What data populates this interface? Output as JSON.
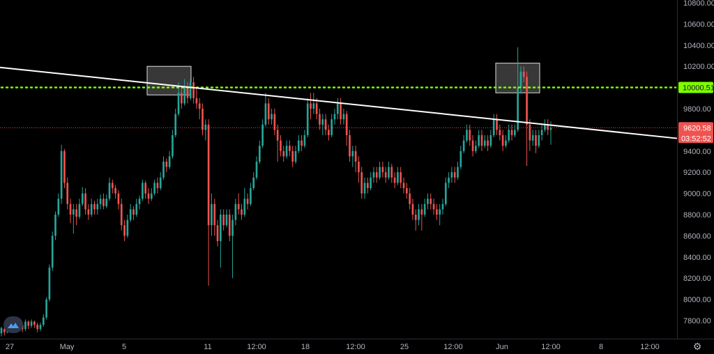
{
  "chart_data": {
    "type": "candlestick",
    "y_axis": {
      "min": 7650,
      "max": 10860,
      "ticks": [
        "10800.00",
        "10600.00",
        "10400.00",
        "10200.00",
        "10000.00",
        "9800.00",
        "9600.00",
        "9400.00",
        "9200.00",
        "9000.00",
        "8800.00",
        "8600.00",
        "8400.00",
        "8200.00",
        "8000.00",
        "7800.00"
      ]
    },
    "x_axis": {
      "ticks": [
        "27",
        "May",
        "5",
        "11",
        "12:00",
        "18",
        "12:00",
        "25",
        "12:00",
        "Jun",
        "12:00",
        "8",
        "12:00"
      ]
    },
    "price_lines": {
      "resistance": {
        "value": 10000.51,
        "label": "10000.51",
        "color": "#7fff00",
        "style": "dotted"
      },
      "last_price": {
        "value": 9620.58,
        "label": "9620.58",
        "color": "#ef5350",
        "countdown": "03:52:52"
      }
    },
    "trendline": {
      "color": "#ffffff",
      "start_value": 10190,
      "end_value": 9520
    },
    "highlight_boxes": [
      {
        "y_from": 9930,
        "y_to": 10200
      },
      {
        "y_from": 9950,
        "y_to": 10230
      }
    ],
    "colors": {
      "up": "#26a69a",
      "down": "#ef5350",
      "background": "#000000",
      "axis_text": "#b2b5be"
    },
    "candles": [
      [
        7680,
        7730,
        7650,
        7740
      ],
      [
        7720,
        7690,
        7660,
        7750
      ],
      [
        7690,
        7760,
        7680,
        7790
      ],
      [
        7760,
        7730,
        7700,
        7780
      ],
      [
        7730,
        7770,
        7710,
        7800
      ],
      [
        7770,
        7740,
        7710,
        7790
      ],
      [
        7740,
        7760,
        7700,
        7780
      ],
      [
        7760,
        7720,
        7690,
        7780
      ],
      [
        7720,
        7790,
        7700,
        7810
      ],
      [
        7790,
        7750,
        7720,
        7800
      ],
      [
        7750,
        7790,
        7730,
        7810
      ],
      [
        7790,
        7760,
        7730,
        7800
      ],
      [
        7760,
        7720,
        7690,
        7780
      ],
      [
        7720,
        7760,
        7700,
        7780
      ],
      [
        7760,
        7830,
        7740,
        7860
      ],
      [
        7830,
        8000,
        7810,
        8020
      ],
      [
        8000,
        8300,
        7980,
        8330
      ],
      [
        8300,
        8600,
        8270,
        8640
      ],
      [
        8600,
        8800,
        8560,
        8830
      ],
      [
        8800,
        8950,
        8780,
        9000
      ],
      [
        8950,
        9400,
        8900,
        9460
      ],
      [
        9400,
        9100,
        9050,
        9420
      ],
      [
        9100,
        8900,
        8850,
        9150
      ],
      [
        8900,
        8800,
        8720,
        8950
      ],
      [
        8800,
        8850,
        8620,
        8900
      ],
      [
        8850,
        8780,
        8700,
        8900
      ],
      [
        8780,
        8900,
        8760,
        8950
      ],
      [
        8900,
        9000,
        8880,
        9060
      ],
      [
        9000,
        8850,
        8800,
        9050
      ],
      [
        8850,
        8800,
        8750,
        8900
      ],
      [
        8800,
        8900,
        8780,
        8950
      ],
      [
        8900,
        8850,
        8800,
        8930
      ],
      [
        8850,
        8900,
        8800,
        8950
      ],
      [
        8900,
        8950,
        8850,
        8990
      ],
      [
        8950,
        8880,
        8850,
        9000
      ],
      [
        8880,
        8950,
        8860,
        8990
      ],
      [
        8950,
        9100,
        8930,
        9150
      ],
      [
        9100,
        9050,
        9000,
        9130
      ],
      [
        9050,
        9000,
        8950,
        9080
      ],
      [
        9000,
        8900,
        8850,
        9030
      ],
      [
        8900,
        8700,
        8650,
        8950
      ],
      [
        8700,
        8600,
        8550,
        8750
      ],
      [
        8600,
        8750,
        8580,
        8800
      ],
      [
        8750,
        8850,
        8730,
        8900
      ],
      [
        8850,
        8800,
        8750,
        8880
      ],
      [
        8800,
        8900,
        8780,
        8950
      ],
      [
        8900,
        8950,
        8850,
        8980
      ],
      [
        8950,
        9100,
        8930,
        9130
      ],
      [
        9100,
        9000,
        8950,
        9120
      ],
      [
        9000,
        8950,
        8900,
        9050
      ],
      [
        8950,
        9000,
        8930,
        9050
      ],
      [
        9000,
        9100,
        8980,
        9130
      ],
      [
        9100,
        9050,
        9000,
        9150
      ],
      [
        9050,
        9150,
        9030,
        9200
      ],
      [
        9150,
        9300,
        9130,
        9350
      ],
      [
        9300,
        9250,
        9200,
        9330
      ],
      [
        9250,
        9350,
        9230,
        9400
      ],
      [
        9350,
        9550,
        9330,
        9600
      ],
      [
        9550,
        9750,
        9530,
        9800
      ],
      [
        9750,
        9950,
        9730,
        10050
      ],
      [
        9950,
        9850,
        9800,
        10000
      ],
      [
        9850,
        10000,
        9830,
        10080
      ],
      [
        10000,
        9900,
        9850,
        10050
      ],
      [
        9900,
        10050,
        9880,
        10080
      ],
      [
        10050,
        9900,
        9850,
        10100
      ],
      [
        9900,
        9850,
        9800,
        10000
      ],
      [
        9850,
        9800,
        9700,
        9900
      ],
      [
        9800,
        9600,
        9550,
        9850
      ],
      [
        9600,
        9650,
        9500,
        9700
      ],
      [
        9650,
        8700,
        8130,
        9700
      ],
      [
        8700,
        8900,
        8600,
        9000
      ],
      [
        8900,
        8700,
        8600,
        8950
      ],
      [
        8700,
        8550,
        8500,
        8750
      ],
      [
        8550,
        8800,
        8300,
        8850
      ],
      [
        8800,
        8700,
        8650,
        8850
      ],
      [
        8700,
        8800,
        8680,
        8850
      ],
      [
        8800,
        8600,
        8550,
        8850
      ],
      [
        8600,
        8750,
        8200,
        8800
      ],
      [
        8750,
        8900,
        8700,
        8950
      ],
      [
        8900,
        8850,
        8800,
        9000
      ],
      [
        8850,
        8800,
        8750,
        8900
      ],
      [
        8800,
        8950,
        8780,
        9050
      ],
      [
        8950,
        8900,
        8850,
        9000
      ],
      [
        8900,
        9050,
        8880,
        9100
      ],
      [
        9050,
        9150,
        9030,
        9200
      ],
      [
        9150,
        9300,
        9130,
        9350
      ],
      [
        9300,
        9450,
        9280,
        9500
      ],
      [
        9450,
        9650,
        9430,
        9700
      ],
      [
        9650,
        9850,
        9630,
        9950
      ],
      [
        9850,
        9700,
        9650,
        9900
      ],
      [
        9700,
        9750,
        9650,
        9800
      ],
      [
        9750,
        9600,
        9550,
        9800
      ],
      [
        9600,
        9500,
        9300,
        9650
      ],
      [
        9500,
        9400,
        9350,
        9550
      ],
      [
        9400,
        9350,
        9300,
        9450
      ],
      [
        9350,
        9450,
        9330,
        9500
      ],
      [
        9450,
        9400,
        9350,
        9500
      ],
      [
        9400,
        9300,
        9250,
        9450
      ],
      [
        9300,
        9400,
        9280,
        9450
      ],
      [
        9400,
        9500,
        9380,
        9550
      ],
      [
        9500,
        9450,
        9400,
        9550
      ],
      [
        9450,
        9550,
        9430,
        9600
      ],
      [
        9550,
        9850,
        9530,
        9900
      ],
      [
        9850,
        9800,
        9700,
        9950
      ],
      [
        9800,
        9850,
        9750,
        9950
      ],
      [
        9850,
        9750,
        9700,
        9900
      ],
      [
        9750,
        9650,
        9600,
        9800
      ],
      [
        9650,
        9700,
        9550,
        9750
      ],
      [
        9700,
        9600,
        9550,
        9750
      ],
      [
        9600,
        9550,
        9500,
        9650
      ],
      [
        9550,
        9700,
        9530,
        9750
      ],
      [
        9700,
        9750,
        9650,
        9800
      ],
      [
        9750,
        9850,
        9700,
        9900
      ],
      [
        9850,
        9700,
        9650,
        9900
      ],
      [
        9700,
        9750,
        9650,
        9800
      ],
      [
        9750,
        9550,
        9450,
        9780
      ],
      [
        9550,
        9350,
        9300,
        9600
      ],
      [
        9350,
        9400,
        9250,
        9450
      ],
      [
        9400,
        9300,
        9200,
        9450
      ],
      [
        9300,
        9200,
        9100,
        9350
      ],
      [
        9200,
        9000,
        8950,
        9250
      ],
      [
        9000,
        9100,
        8950,
        9150
      ],
      [
        9100,
        9050,
        9000,
        9150
      ],
      [
        9050,
        9150,
        9030,
        9200
      ],
      [
        9150,
        9200,
        9100,
        9250
      ],
      [
        9200,
        9150,
        9100,
        9250
      ],
      [
        9150,
        9250,
        9130,
        9300
      ],
      [
        9250,
        9200,
        9150,
        9300
      ],
      [
        9200,
        9150,
        9100,
        9250
      ],
      [
        9150,
        9250,
        9130,
        9300
      ],
      [
        9250,
        9150,
        9100,
        9280
      ],
      [
        9150,
        9100,
        9050,
        9200
      ],
      [
        9100,
        9200,
        9080,
        9250
      ],
      [
        9200,
        9100,
        9050,
        9250
      ],
      [
        9100,
        9050,
        9000,
        9150
      ],
      [
        9050,
        9000,
        8950,
        9100
      ],
      [
        9000,
        8900,
        8850,
        9050
      ],
      [
        8900,
        8800,
        8750,
        8950
      ],
      [
        8800,
        8750,
        8650,
        8850
      ],
      [
        8750,
        8850,
        8700,
        8900
      ],
      [
        8850,
        8800,
        8650,
        8900
      ],
      [
        8800,
        8900,
        8780,
        8950
      ],
      [
        8900,
        8950,
        8850,
        9000
      ],
      [
        8950,
        8900,
        8850,
        9000
      ],
      [
        8900,
        8850,
        8800,
        8950
      ],
      [
        8850,
        8800,
        8750,
        8900
      ],
      [
        8800,
        8850,
        8700,
        8900
      ],
      [
        8850,
        8900,
        8800,
        8950
      ],
      [
        8900,
        9100,
        8880,
        9150
      ],
      [
        9100,
        9150,
        9050,
        9200
      ],
      [
        9150,
        9200,
        9100,
        9250
      ],
      [
        9200,
        9150,
        9100,
        9250
      ],
      [
        9150,
        9250,
        9130,
        9300
      ],
      [
        9250,
        9400,
        9230,
        9450
      ],
      [
        9400,
        9500,
        9380,
        9550
      ],
      [
        9500,
        9600,
        9480,
        9650
      ],
      [
        9600,
        9500,
        9450,
        9650
      ],
      [
        9500,
        9400,
        9350,
        9550
      ],
      [
        9400,
        9450,
        9380,
        9500
      ],
      [
        9450,
        9550,
        9430,
        9600
      ],
      [
        9550,
        9450,
        9400,
        9600
      ],
      [
        9450,
        9500,
        9430,
        9550
      ],
      [
        9500,
        9450,
        9400,
        9550
      ],
      [
        9450,
        9550,
        9430,
        9600
      ],
      [
        9550,
        9700,
        9530,
        9750
      ],
      [
        9700,
        9600,
        9550,
        9750
      ],
      [
        9600,
        9550,
        9500,
        9650
      ],
      [
        9550,
        9450,
        9400,
        9600
      ],
      [
        9450,
        9500,
        9430,
        9550
      ],
      [
        9500,
        9600,
        9480,
        9650
      ],
      [
        9600,
        9550,
        9500,
        9650
      ],
      [
        9550,
        9600,
        9530,
        9650
      ],
      [
        9600,
        10000,
        9580,
        10380
      ],
      [
        10000,
        10150,
        9950,
        10200
      ],
      [
        10150,
        10100,
        10050,
        10200
      ],
      [
        10100,
        9650,
        9260,
        10150
      ],
      [
        9650,
        9500,
        9400,
        9700
      ],
      [
        9500,
        9550,
        9450,
        9600
      ],
      [
        9550,
        9450,
        9380,
        9600
      ],
      [
        9450,
        9550,
        9430,
        9600
      ],
      [
        9550,
        9600,
        9500,
        9650
      ],
      [
        9600,
        9650,
        9580,
        9700
      ],
      [
        9650,
        9600,
        9550,
        9700
      ],
      [
        9600,
        9620,
        9460,
        9680
      ]
    ]
  }
}
